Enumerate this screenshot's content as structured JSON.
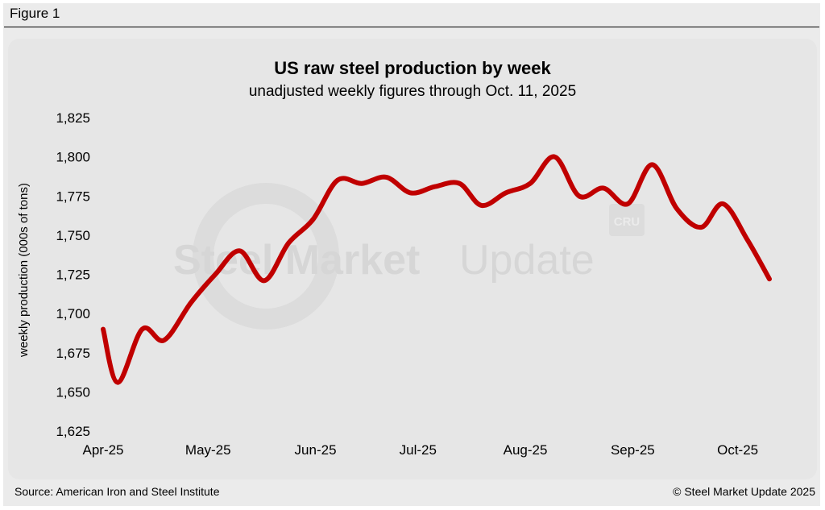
{
  "figure_label": "Figure 1",
  "footer": {
    "source": "Source: American Iron and Steel Institute",
    "copyright": "© Steel Market Update 2025"
  },
  "watermark": {
    "brand_bold": "Steel Market",
    "brand_light": "Update",
    "cru": "CRU"
  },
  "colors": {
    "line": "#c00000",
    "background": "#e6e6e6",
    "frame": "#ebebeb"
  },
  "chart_data": {
    "type": "line",
    "title": "US raw steel production by week",
    "subtitle": "unadjusted weekly figures through Oct. 11, 2025",
    "xlabel": "",
    "ylabel": "weekly production (000s of tons)",
    "ylim": [
      1625,
      1825
    ],
    "yticks": [
      1625,
      1650,
      1675,
      1700,
      1725,
      1750,
      1775,
      1800,
      1825
    ],
    "ytick_labels": [
      "1,625",
      "1,650",
      "1,675",
      "1,700",
      "1,725",
      "1,750",
      "1,775",
      "1,800",
      "1,825"
    ],
    "xlim": [
      0,
      27.3
    ],
    "xticks": [
      {
        "label": "Apr-25",
        "x": 0
      },
      {
        "label": "May-25",
        "x": 4.3
      },
      {
        "label": "Jun-25",
        "x": 8.7
      },
      {
        "label": "Jul-25",
        "x": 12.9
      },
      {
        "label": "Aug-25",
        "x": 17.3
      },
      {
        "label": "Sep-25",
        "x": 21.7
      },
      {
        "label": "Oct-25",
        "x": 26.0
      }
    ],
    "series": [
      {
        "name": "US raw steel production",
        "x": [
          0,
          0.6,
          1.6,
          2.5,
          3.6,
          4.6,
          5.6,
          6.6,
          7.6,
          8.6,
          9.6,
          10.6,
          11.6,
          12.6,
          13.6,
          14.6,
          15.5,
          16.5,
          17.5,
          18.5,
          19.5,
          20.5,
          21.5,
          22.5,
          23.5,
          24.5,
          25.4,
          26.4,
          27.3
        ],
        "values": [
          1690,
          1656,
          1690,
          1683,
          1707,
          1725,
          1740,
          1721,
          1745,
          1760,
          1785,
          1783,
          1787,
          1777,
          1781,
          1783,
          1769,
          1777,
          1783,
          1800,
          1775,
          1780,
          1770,
          1795,
          1767,
          1755,
          1770,
          1747,
          1722
        ]
      }
    ]
  }
}
